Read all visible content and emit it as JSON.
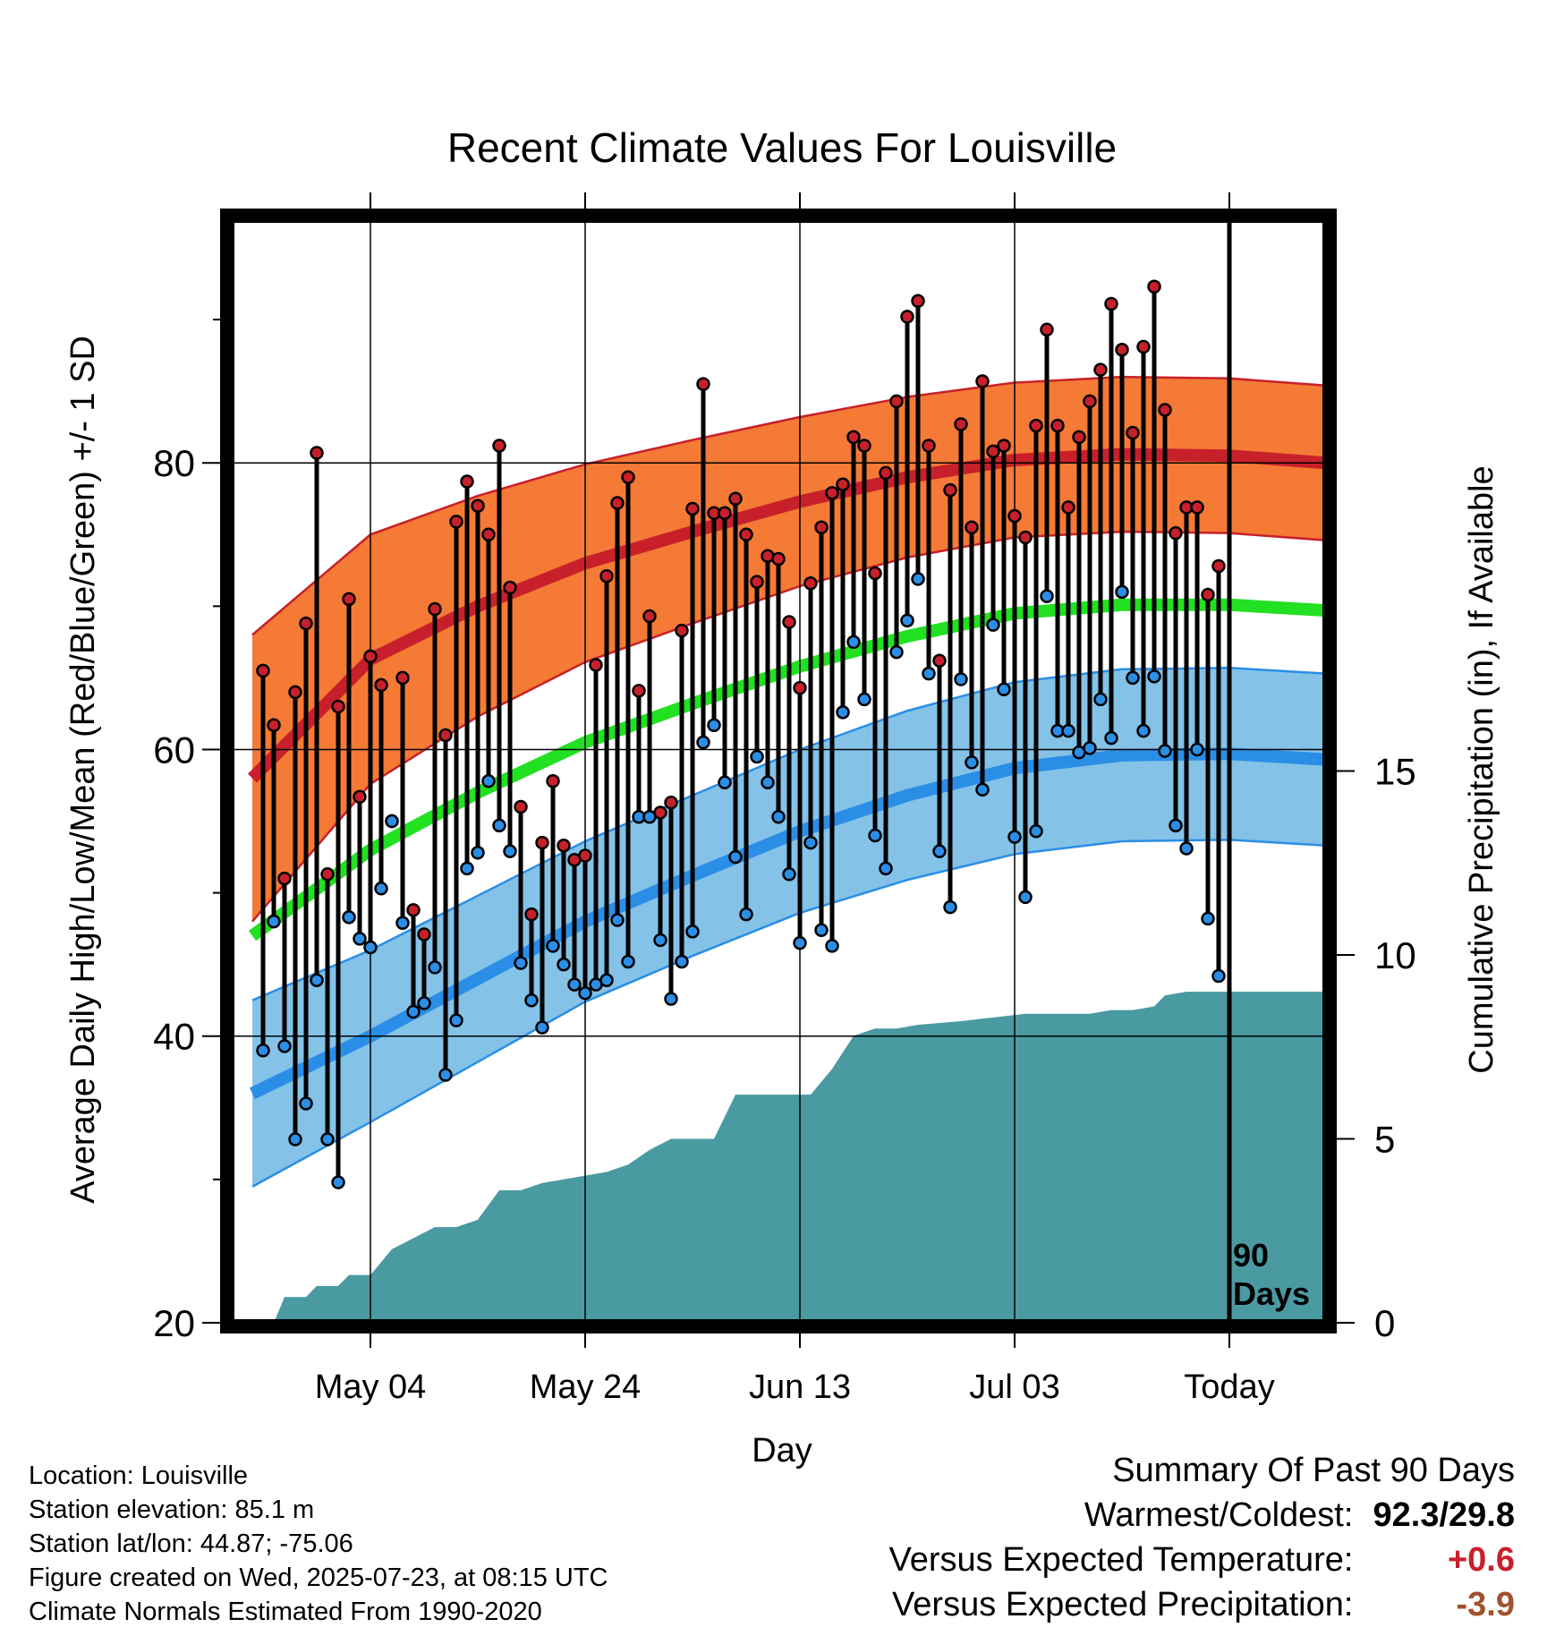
{
  "chart_data": {
    "type": "line",
    "title": "Recent Climate Values For Louisville",
    "xlabel": "Day",
    "ylabel_left": "Average Daily High/Low/Mean (Red/Blue/Green) +/- 1 SD",
    "ylabel_right": "Cumulative Precipitation (in), If Available",
    "ylim_left": [
      20,
      97
    ],
    "yticks_left": [
      20,
      40,
      60,
      80
    ],
    "ylim_right": [
      0,
      30
    ],
    "yticks_right": [
      0,
      5,
      10,
      15
    ],
    "x_range_days": [
      -93,
      9
    ],
    "x_ticks": [
      {
        "day": -80,
        "label": "May 04"
      },
      {
        "day": -60,
        "label": "May 24"
      },
      {
        "day": -40,
        "label": "Jun 13"
      },
      {
        "day": -20,
        "label": "Jul 03"
      },
      {
        "day": 0,
        "label": "Today"
      }
    ],
    "today_marker": {
      "day": 0,
      "label_line1": "90",
      "label_line2": "Days"
    },
    "normals": {
      "day": [
        -91,
        -80,
        -70,
        -60,
        -50,
        -40,
        -30,
        -20,
        -10,
        0,
        9
      ],
      "high_mean": [
        58.0,
        66.3,
        70.0,
        73.0,
        75.2,
        77.3,
        79.0,
        80.2,
        80.6,
        80.5,
        80.0
      ],
      "high_sd": [
        10.0,
        8.7,
        7.7,
        6.9,
        6.4,
        5.9,
        5.6,
        5.4,
        5.4,
        5.4,
        5.4
      ],
      "low_mean": [
        36.0,
        40.0,
        44.0,
        48.0,
        51.2,
        54.3,
        56.8,
        58.7,
        59.6,
        59.7,
        59.3
      ],
      "low_sd": [
        6.5,
        6.0,
        5.8,
        5.6,
        5.6,
        5.7,
        5.9,
        6.0,
        6.0,
        6.0,
        6.0
      ],
      "avg_mean": [
        47.0,
        53.0,
        57.0,
        60.5,
        63.2,
        65.8,
        67.9,
        69.5,
        70.1,
        70.1,
        69.7
      ]
    },
    "series": [
      {
        "name": "High",
        "color": "#c8202a",
        "values": [
          65.5,
          61.7,
          51.0,
          64.0,
          68.8,
          80.7,
          51.3,
          63.0,
          70.5,
          56.7,
          66.5,
          64.5,
          55.0,
          65.0,
          48.8,
          47.1,
          69.8,
          61.0,
          75.9,
          78.7,
          77.0,
          75.0,
          81.2,
          71.3,
          56.0,
          48.5,
          53.5,
          57.8,
          53.3,
          52.3,
          52.6,
          65.9,
          72.1,
          77.2,
          79.0,
          64.1,
          69.3,
          55.6,
          56.3,
          68.3,
          76.8,
          85.5,
          76.5,
          76.5,
          77.5,
          75.0,
          71.7,
          73.5,
          73.3,
          68.9,
          64.3,
          71.6,
          75.5,
          77.9,
          78.5,
          81.8,
          81.2,
          72.3,
          79.3,
          84.3,
          90.2,
          91.3,
          81.2,
          66.2,
          78.1,
          82.7,
          75.5,
          85.7,
          80.8,
          81.2,
          76.3,
          74.8,
          82.6,
          89.3,
          82.6,
          76.9,
          81.8,
          84.3,
          86.5,
          91.1,
          87.9,
          82.1,
          88.1,
          92.3,
          83.7,
          75.1,
          76.9,
          76.9,
          70.8,
          72.8
        ]
      },
      {
        "name": "Low",
        "color": "#2a8ee6",
        "values": [
          39.0,
          48.0,
          39.3,
          32.8,
          35.3,
          43.9,
          32.8,
          29.8,
          48.3,
          46.8,
          46.2,
          50.3,
          55.0,
          47.9,
          41.7,
          42.3,
          44.8,
          37.3,
          41.1,
          51.7,
          52.8,
          57.8,
          54.7,
          52.9,
          45.1,
          42.5,
          40.6,
          46.3,
          45.0,
          43.6,
          43.0,
          43.6,
          43.9,
          48.1,
          45.2,
          55.3,
          55.3,
          46.7,
          42.6,
          45.2,
          47.3,
          60.5,
          61.7,
          57.7,
          52.5,
          48.5,
          59.5,
          57.7,
          55.3,
          51.3,
          46.5,
          53.5,
          47.4,
          46.3,
          62.6,
          67.5,
          63.5,
          54.0,
          51.7,
          66.8,
          69.0,
          71.9,
          65.3,
          52.9,
          49.0,
          64.9,
          59.1,
          57.2,
          68.7,
          64.2,
          53.9,
          49.7,
          54.3,
          70.7,
          61.3,
          61.3,
          59.8,
          60.1,
          63.5,
          60.8,
          71.0,
          65.0,
          61.3,
          65.1,
          59.9,
          54.7,
          53.1,
          60.0,
          48.2,
          44.2
        ]
      },
      {
        "name": "Cumulative Precipitation",
        "color": "#4a9aa2",
        "day": [
          -91,
          -89,
          -88,
          -86,
          -85,
          -83,
          -82,
          -80,
          -78,
          -76,
          -74,
          -72,
          -70,
          -68,
          -66,
          -64,
          -62,
          -60,
          -58,
          -56,
          -54,
          -52,
          -48,
          -46,
          -44,
          -41,
          -39,
          -37,
          -35,
          -33,
          -31,
          -29,
          -25,
          -22,
          -19,
          -17,
          -15,
          -13,
          -11,
          -9,
          -7,
          -6,
          -4,
          -2,
          0,
          9
        ],
        "values": [
          0,
          0,
          0.7,
          0.7,
          1.0,
          1.0,
          1.3,
          1.3,
          2.0,
          2.3,
          2.6,
          2.6,
          2.8,
          3.6,
          3.6,
          3.8,
          3.9,
          4.0,
          4.1,
          4.3,
          4.7,
          5.0,
          5.0,
          6.2,
          6.2,
          6.2,
          6.2,
          6.9,
          7.8,
          8.0,
          8.0,
          8.1,
          8.2,
          8.3,
          8.4,
          8.4,
          8.4,
          8.4,
          8.5,
          8.5,
          8.6,
          8.9,
          9.0,
          9.0,
          9.0,
          9.0
        ]
      }
    ],
    "grid": true,
    "legend": "none"
  },
  "meta": {
    "location": "Location: Louisville",
    "elevation": "Station elevation: 85.1 m",
    "latlon": "Station lat/lon: 44.87; -75.06",
    "created": "Figure created on Wed, 2025-07-23, at 08:15 UTC",
    "normals": "Climate Normals Estimated From 1990-2020"
  },
  "summary": {
    "title": "Summary Of Past 90 Days",
    "warm_cold_label": "Warmest/Coldest:",
    "warm_cold_value": "92.3/29.8",
    "temp_label": "Versus Expected Temperature:",
    "temp_value": "+0.6",
    "temp_color": "#c8202a",
    "precip_label": "Versus Expected Precipitation:",
    "precip_value": "-3.9",
    "precip_color": "#a0522d"
  },
  "colors": {
    "high_band": "#f47a35",
    "high_mean": "#c8202a",
    "low_band": "#84c2e8",
    "low_mean": "#2a8ee6",
    "avg_mean": "#22e022",
    "precip": "#4a9aa2",
    "high_marker": "#c8202a",
    "low_marker": "#2a8ee6"
  }
}
